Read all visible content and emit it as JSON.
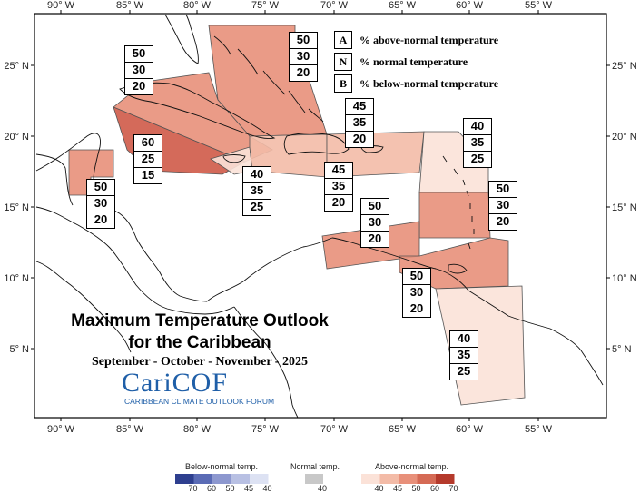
{
  "map": {
    "title_line1": "Maximum Temperature Outlook",
    "title_line2": "for the Caribbean",
    "subtitle": "September - October - November - 2025",
    "logo_main": "CariCOF",
    "logo_sub": "CARIBBEAN CLIMATE OUTLOOK FORUM",
    "lon_ticks": [
      "90° W",
      "85° W",
      "80° W",
      "75° W",
      "70° W",
      "65° W",
      "60° W",
      "55° W"
    ],
    "lat_ticks": [
      "25° N",
      "20° N",
      "15° N",
      "10° N",
      "5° N"
    ],
    "legend": [
      {
        "key": "A",
        "label": "% above-normal temperature"
      },
      {
        "key": "N",
        "label": "% normal temperature"
      },
      {
        "key": "B",
        "label": "% below-normal temperature"
      }
    ]
  },
  "regions": [
    {
      "id": "bahamas",
      "values": [
        "50",
        "30",
        "20"
      ],
      "color": "#e8907a"
    },
    {
      "id": "cuba-north",
      "values": [
        "50",
        "30",
        "20"
      ],
      "color": "#e8907a"
    },
    {
      "id": "caribbean-west",
      "values": [
        "60",
        "25",
        "15"
      ],
      "color": "#cf5a48"
    },
    {
      "id": "belize",
      "values": [
        "50",
        "30",
        "20"
      ],
      "color": "#e8907a"
    },
    {
      "id": "jamaica",
      "values": [
        "40",
        "35",
        "25"
      ],
      "color": "#fbe2d8"
    },
    {
      "id": "hispaniola",
      "values": [
        "45",
        "35",
        "20"
      ],
      "color": "#f3bba7"
    },
    {
      "id": "puerto-rico",
      "values": [
        "45",
        "35",
        "20"
      ],
      "color": "#f3bba7"
    },
    {
      "id": "northern-leewards",
      "values": [
        "40",
        "35",
        "25"
      ],
      "color": "#fbe2d8"
    },
    {
      "id": "southern-leewards",
      "values": [
        "50",
        "30",
        "20"
      ],
      "color": "#e8907a"
    },
    {
      "id": "abc-islands",
      "values": [
        "50",
        "30",
        "20"
      ],
      "color": "#e8907a"
    },
    {
      "id": "trinidad",
      "values": [
        "50",
        "30",
        "20"
      ],
      "color": "#e8907a"
    },
    {
      "id": "guianas",
      "values": [
        "40",
        "35",
        "25"
      ],
      "color": "#fbe2d8"
    }
  ],
  "colorbar": {
    "below_title": "Below-normal temp.",
    "normal_title": "Normal temp.",
    "above_title": "Above-normal temp.",
    "below_labels": [
      "70",
      "60",
      "50",
      "45",
      "40"
    ],
    "normal_labels": [
      "40"
    ],
    "above_labels": [
      "40",
      "45",
      "50",
      "60",
      "70"
    ],
    "below_colors": [
      "#2e3f8f",
      "#5a6bb5",
      "#8d98cf",
      "#b8c0e3",
      "#dde2f3"
    ],
    "normal_colors": [
      "#c8c8c8"
    ],
    "above_colors": [
      "#fbe2d8",
      "#f3bba7",
      "#e8907a",
      "#d56a55",
      "#b53a2c"
    ]
  }
}
